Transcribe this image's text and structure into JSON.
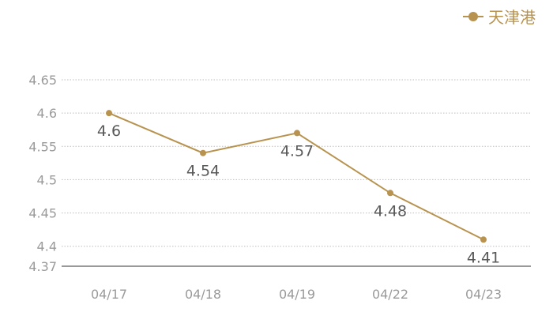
{
  "colors": {
    "series": "#B8934F",
    "grid": "#bdbdbd",
    "axis": "#333333",
    "tick_text": "#9a9a9a",
    "label_text": "#595959",
    "legend_text": "#B8934F"
  },
  "chart_data": {
    "type": "line",
    "categories": [
      "04/17",
      "04/18",
      "04/19",
      "04/22",
      "04/23"
    ],
    "series": [
      {
        "name": "天津港",
        "values": [
          4.6,
          4.54,
          4.57,
          4.48,
          4.41
        ]
      }
    ],
    "data_labels": [
      "4.6",
      "4.54",
      "4.57",
      "4.48",
      "4.41"
    ],
    "y_ticks": [
      4.65,
      4.6,
      4.55,
      4.5,
      4.45,
      4.4,
      4.37
    ],
    "y_tick_labels": [
      "4.65",
      "4.6",
      "4.55",
      "4.5",
      "4.45",
      "4.4",
      "4.37"
    ],
    "ylim": [
      4.37,
      4.65
    ],
    "grid": true,
    "legend_position": "top-right"
  }
}
